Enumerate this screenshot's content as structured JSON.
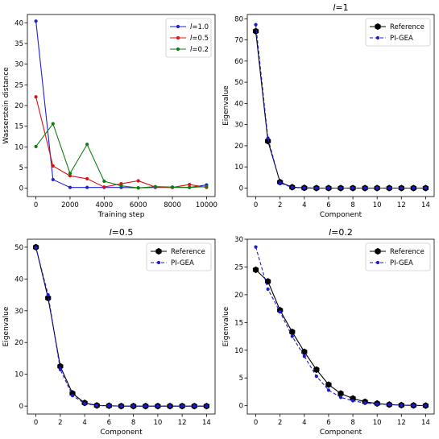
{
  "chart_data": [
    {
      "type": "line",
      "title": "",
      "xlabel": "Training step",
      "ylabel": "Wasserstein distance",
      "xlim": [
        -500,
        10500
      ],
      "ylim": [
        -2,
        42
      ],
      "xticks": [
        0,
        2000,
        4000,
        6000,
        8000,
        10000
      ],
      "yticks": [
        0,
        5,
        10,
        15,
        20,
        25,
        30,
        35,
        40
      ],
      "legend": "top-right",
      "series": [
        {
          "name": "l=1.0",
          "color": "#1f1fd6",
          "dashed": false,
          "marker": "dot",
          "x": [
            0,
            1000,
            2000,
            3000,
            4000,
            5000,
            6000,
            7000,
            8000,
            9000,
            10000
          ],
          "y": [
            40.4,
            2.1,
            0.2,
            0.2,
            0.2,
            0.2,
            0.1,
            0.2,
            0.2,
            0.2,
            0.8
          ]
        },
        {
          "name": "l=0.5",
          "color": "#e01010",
          "dashed": false,
          "marker": "dot",
          "x": [
            0,
            1000,
            2000,
            3000,
            4000,
            5000,
            6000,
            7000,
            8000,
            9000,
            10000
          ],
          "y": [
            22.1,
            5.4,
            3.0,
            2.3,
            0.3,
            1.1,
            1.8,
            0.3,
            0.2,
            0.9,
            0.2
          ]
        },
        {
          "name": "l=0.2",
          "color": "#107c10",
          "dashed": false,
          "marker": "dot",
          "x": [
            0,
            1000,
            2000,
            3000,
            4000,
            5000,
            6000,
            7000,
            8000,
            9000,
            10000
          ],
          "y": [
            10.1,
            15.6,
            3.6,
            10.6,
            1.7,
            0.6,
            0.1,
            0.4,
            0.3,
            0.2,
            0.4
          ]
        }
      ]
    },
    {
      "type": "line",
      "title": "l=1",
      "xlabel": "Component",
      "ylabel": "Eigenvalue",
      "xlim": [
        -0.7,
        14.7
      ],
      "ylim": [
        -4,
        82
      ],
      "xticks": [
        0,
        2,
        4,
        6,
        8,
        10,
        12,
        14
      ],
      "yticks": [
        0,
        10,
        20,
        30,
        40,
        50,
        60,
        70,
        80
      ],
      "legend": "top-right",
      "series": [
        {
          "name": "Reference",
          "color": "#000000",
          "dashed": false,
          "marker": "hexagon",
          "x": [
            0,
            1,
            2,
            3,
            4,
            5,
            6,
            7,
            8,
            9,
            10,
            11,
            12,
            13,
            14
          ],
          "y": [
            74.1,
            22.2,
            2.8,
            0.4,
            0.1,
            0,
            0,
            0,
            0,
            0,
            0,
            0,
            0,
            0,
            0
          ]
        },
        {
          "name": "PI-GEA",
          "color": "#1a1ad0",
          "dashed": true,
          "marker": "dot",
          "x": [
            0,
            1,
            2,
            3,
            4,
            5,
            6,
            7,
            8,
            9,
            10,
            11,
            12,
            13,
            14
          ],
          "y": [
            77.2,
            23.6,
            2.4,
            0.3,
            0.1,
            0,
            0,
            0,
            0,
            0,
            0,
            0,
            0,
            0,
            0
          ]
        }
      ]
    },
    {
      "type": "line",
      "title": "l=0.5",
      "xlabel": "Component",
      "ylabel": "Eigenvalue",
      "xlim": [
        -0.7,
        14.7
      ],
      "ylim": [
        -2.5,
        52.5
      ],
      "xticks": [
        0,
        2,
        4,
        6,
        8,
        10,
        12,
        14
      ],
      "yticks": [
        0,
        10,
        20,
        30,
        40,
        50
      ],
      "legend": "top-right",
      "series": [
        {
          "name": "Reference",
          "color": "#000000",
          "dashed": false,
          "marker": "hexagon",
          "x": [
            0,
            1,
            2,
            3,
            4,
            5,
            6,
            7,
            8,
            9,
            10,
            11,
            12,
            13,
            14
          ],
          "y": [
            50.0,
            34.0,
            12.5,
            4.0,
            1.0,
            0.2,
            0.1,
            0,
            0,
            0,
            0,
            0,
            0,
            0,
            0
          ]
        },
        {
          "name": "PI-GEA",
          "color": "#1a1ad0",
          "dashed": true,
          "marker": "dot",
          "x": [
            0,
            1,
            2,
            3,
            4,
            5,
            6,
            7,
            8,
            9,
            10,
            11,
            12,
            13,
            14
          ],
          "y": [
            49.9,
            35.0,
            11.5,
            3.3,
            0.8,
            0.2,
            0.1,
            0,
            0,
            0,
            0,
            0,
            0,
            0,
            0
          ]
        }
      ]
    },
    {
      "type": "line",
      "title": "l=0.2",
      "xlabel": "Component",
      "ylabel": "Eigenvalue",
      "xlim": [
        -0.7,
        14.7
      ],
      "ylim": [
        -1.5,
        30
      ],
      "xticks": [
        0,
        2,
        4,
        6,
        8,
        10,
        12,
        14
      ],
      "yticks": [
        0,
        5,
        10,
        15,
        20,
        25,
        30
      ],
      "legend": "top-right",
      "series": [
        {
          "name": "Reference",
          "color": "#000000",
          "dashed": false,
          "marker": "hexagon",
          "x": [
            0,
            1,
            2,
            3,
            4,
            5,
            6,
            7,
            8,
            9,
            10,
            11,
            12,
            13,
            14
          ],
          "y": [
            24.5,
            22.4,
            17.2,
            13.3,
            9.7,
            6.5,
            3.8,
            2.2,
            1.3,
            0.7,
            0.4,
            0.2,
            0.1,
            0.05,
            0.02
          ]
        },
        {
          "name": "PI-GEA",
          "color": "#1a1ad0",
          "dashed": true,
          "marker": "dot",
          "x": [
            0,
            1,
            2,
            3,
            4,
            5,
            6,
            7,
            8,
            9,
            10,
            11,
            12,
            13,
            14
          ],
          "y": [
            28.6,
            21.0,
            16.9,
            12.5,
            8.9,
            5.3,
            2.8,
            1.5,
            0.9,
            0.5,
            0.3,
            0.2,
            0.1,
            0.05,
            0.02
          ]
        }
      ]
    }
  ]
}
